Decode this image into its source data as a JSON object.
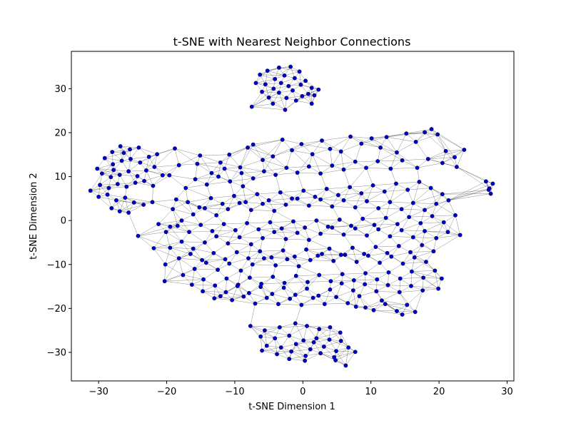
{
  "chart_data": {
    "type": "scatter",
    "title": "t-SNE with Nearest Neighbor Connections",
    "xlabel": "t-SNE Dimension 1",
    "ylabel": "t-SNE Dimension 2",
    "xlim": [
      -34,
      31
    ],
    "ylim": [
      -36.5,
      38.5
    ],
    "xticks": [
      -30,
      -20,
      -10,
      0,
      10,
      20,
      30
    ],
    "yticks": [
      -30,
      -20,
      -10,
      0,
      10,
      20,
      30
    ],
    "grid": false,
    "legend": "none",
    "point_color": "#0000cc",
    "point_edge_color": "#000066",
    "edge_color": "#000000",
    "neighbors_per_point": 6,
    "points": [
      [
        -3.5,
        34.8
      ],
      [
        -5.2,
        34.1
      ],
      [
        -1.8,
        35.0
      ],
      [
        -0.5,
        33.9
      ],
      [
        -6.3,
        33.2
      ],
      [
        -2.7,
        33.0
      ],
      [
        -4.1,
        32.2
      ],
      [
        -1.2,
        32.4
      ],
      [
        0.4,
        31.8
      ],
      [
        -3.2,
        31.3
      ],
      [
        -5.5,
        31.0
      ],
      [
        -6.9,
        31.3
      ],
      [
        -0.3,
        30.9
      ],
      [
        -2.1,
        30.6
      ],
      [
        -4.3,
        30.0
      ],
      [
        1.3,
        30.2
      ],
      [
        2.3,
        29.8
      ],
      [
        -1.5,
        29.6
      ],
      [
        -3.5,
        29.1
      ],
      [
        0.8,
        28.8
      ],
      [
        -6.0,
        29.3
      ],
      [
        -5.0,
        28.0
      ],
      [
        -2.4,
        27.9
      ],
      [
        -0.1,
        28.3
      ],
      [
        -7.5,
        25.9
      ],
      [
        -2.6,
        25.2
      ],
      [
        1.3,
        26.6
      ],
      [
        1.7,
        28.5
      ],
      [
        -4.4,
        26.6
      ],
      [
        -1.0,
        27.3
      ],
      [
        -30.2,
        11.8
      ],
      [
        -29.1,
        14.2
      ],
      [
        -28.0,
        15.6
      ],
      [
        -26.8,
        16.9
      ],
      [
        -25.4,
        16.2
      ],
      [
        -24.1,
        16.6
      ],
      [
        -27.9,
        12.8
      ],
      [
        -26.6,
        13.6
      ],
      [
        -25.3,
        14.0
      ],
      [
        -23.9,
        13.2
      ],
      [
        -22.6,
        14.5
      ],
      [
        -21.4,
        15.1
      ],
      [
        -29.5,
        10.7
      ],
      [
        -28.2,
        9.9
      ],
      [
        -26.9,
        10.4
      ],
      [
        -25.6,
        11.2
      ],
      [
        -24.3,
        10.1
      ],
      [
        -23.0,
        11.4
      ],
      [
        -21.8,
        12.2
      ],
      [
        -20.6,
        10.3
      ],
      [
        -29.8,
        8.1
      ],
      [
        -28.5,
        7.4
      ],
      [
        -27.2,
        8.3
      ],
      [
        -25.9,
        7.7
      ],
      [
        -24.6,
        8.6
      ],
      [
        -23.3,
        9.0
      ],
      [
        -22.0,
        7.9
      ],
      [
        -31.2,
        6.8
      ],
      [
        -30.0,
        5.4
      ],
      [
        -28.7,
        5.9
      ],
      [
        -27.4,
        4.6
      ],
      [
        -26.1,
        5.2
      ],
      [
        -24.8,
        4.1
      ],
      [
        -23.4,
        3.6
      ],
      [
        -28.1,
        2.8
      ],
      [
        -26.9,
        2.1
      ],
      [
        -25.6,
        1.8
      ],
      [
        -22.1,
        4.2
      ],
      [
        -26.3,
        15.4
      ],
      [
        -27.8,
        11.5
      ],
      [
        -18.8,
        16.4
      ],
      [
        -24.2,
        -3.5
      ],
      [
        -7.7,
        -24.0
      ],
      [
        -5.6,
        -25.0
      ],
      [
        -3.4,
        -24.3
      ],
      [
        -1.1,
        -23.4
      ],
      [
        0.6,
        -24.0
      ],
      [
        2.4,
        -24.7
      ],
      [
        4.0,
        -24.3
      ],
      [
        5.5,
        -25.5
      ],
      [
        -6.2,
        -26.4
      ],
      [
        -4.1,
        -26.8
      ],
      [
        -2.0,
        -26.2
      ],
      [
        0.1,
        -27.3
      ],
      [
        2.0,
        -26.8
      ],
      [
        3.9,
        -27.1
      ],
      [
        5.6,
        -27.4
      ],
      [
        -5.3,
        -28.5
      ],
      [
        -3.2,
        -28.9
      ],
      [
        -1.0,
        -28.1
      ],
      [
        1.1,
        -29.3
      ],
      [
        3.1,
        -28.7
      ],
      [
        4.9,
        -29.7
      ],
      [
        6.7,
        -28.9
      ],
      [
        -6.0,
        -29.6
      ],
      [
        -3.8,
        -30.4
      ],
      [
        -1.7,
        -29.8
      ],
      [
        0.4,
        -30.8
      ],
      [
        2.6,
        -30.2
      ],
      [
        4.6,
        -31.1
      ],
      [
        7.7,
        -29.9
      ],
      [
        -2.0,
        -31.5
      ],
      [
        0.3,
        -31.9
      ],
      [
        6.3,
        -33.0
      ],
      [
        4.8,
        -31.8
      ],
      [
        1.6,
        -27.7
      ],
      [
        26.9,
        8.9
      ],
      [
        27.4,
        7.3
      ],
      [
        27.9,
        8.4
      ],
      [
        27.6,
        6.1
      ],
      [
        27.3,
        7.0
      ],
      [
        -19.6,
        10.3
      ],
      [
        -18.2,
        12.6
      ],
      [
        -15.1,
        14.8
      ],
      [
        -13.4,
        10.8
      ],
      [
        -12.1,
        13.2
      ],
      [
        -10.8,
        15.0
      ],
      [
        -9.2,
        12.1
      ],
      [
        -8.1,
        16.6
      ],
      [
        -7.3,
        17.3
      ],
      [
        -5.9,
        13.8
      ],
      [
        -4.4,
        14.6
      ],
      [
        -3.0,
        18.4
      ],
      [
        -1.6,
        16.0
      ],
      [
        -0.2,
        17.4
      ],
      [
        1.4,
        15.1
      ],
      [
        2.8,
        18.2
      ],
      [
        4.0,
        16.3
      ],
      [
        5.6,
        15.7
      ],
      [
        7.0,
        19.1
      ],
      [
        8.6,
        17.5
      ],
      [
        10.1,
        18.7
      ],
      [
        11.4,
        16.6
      ],
      [
        12.3,
        19.0
      ],
      [
        13.8,
        15.5
      ],
      [
        15.2,
        19.8
      ],
      [
        16.6,
        17.9
      ],
      [
        17.9,
        20.1
      ],
      [
        18.9,
        20.8
      ],
      [
        19.8,
        19.6
      ],
      [
        21.0,
        15.8
      ],
      [
        22.3,
        14.4
      ],
      [
        23.7,
        16.1
      ],
      [
        22.6,
        12.2
      ],
      [
        20.5,
        13.1
      ],
      [
        18.4,
        14.0
      ],
      [
        16.8,
        12.0
      ],
      [
        14.6,
        13.7
      ],
      [
        12.9,
        11.8
      ],
      [
        11.0,
        13.5
      ],
      [
        9.3,
        12.0
      ],
      [
        7.7,
        13.4
      ],
      [
        6.0,
        11.6
      ],
      [
        4.3,
        12.5
      ],
      [
        2.6,
        10.7
      ],
      [
        0.9,
        12.3
      ],
      [
        -0.8,
        10.9
      ],
      [
        -2.4,
        12.0
      ],
      [
        -4.0,
        10.4
      ],
      [
        -5.7,
        11.2
      ],
      [
        -7.3,
        9.6
      ],
      [
        -9.0,
        10.8
      ],
      [
        -10.7,
        8.9
      ],
      [
        -12.4,
        10.0
      ],
      [
        -14.1,
        8.2
      ],
      [
        -15.8,
        9.4
      ],
      [
        -17.2,
        7.4
      ],
      [
        -18.6,
        4.8
      ],
      [
        -16.9,
        4.2
      ],
      [
        -15.2,
        3.0
      ],
      [
        -13.5,
        5.1
      ],
      [
        -11.8,
        3.8
      ],
      [
        -10.1,
        5.6
      ],
      [
        -8.4,
        4.2
      ],
      [
        -6.7,
        6.0
      ],
      [
        -5.0,
        4.6
      ],
      [
        -3.3,
        6.4
      ],
      [
        -1.6,
        5.0
      ],
      [
        0.1,
        6.8
      ],
      [
        1.8,
        5.4
      ],
      [
        3.5,
        7.2
      ],
      [
        5.2,
        5.8
      ],
      [
        6.9,
        7.6
      ],
      [
        8.6,
        6.2
      ],
      [
        10.3,
        8.0
      ],
      [
        12.0,
        6.6
      ],
      [
        13.7,
        8.4
      ],
      [
        15.4,
        7.0
      ],
      [
        17.1,
        8.8
      ],
      [
        18.8,
        7.4
      ],
      [
        20.5,
        6.0
      ],
      [
        21.4,
        4.6
      ],
      [
        19.6,
        3.8
      ],
      [
        17.9,
        2.4
      ],
      [
        16.2,
        4.0
      ],
      [
        14.5,
        2.6
      ],
      [
        12.8,
        4.2
      ],
      [
        11.1,
        2.8
      ],
      [
        9.4,
        4.4
      ],
      [
        7.7,
        3.0
      ],
      [
        6.0,
        4.6
      ],
      [
        4.3,
        3.2
      ],
      [
        2.6,
        4.8
      ],
      [
        0.9,
        3.4
      ],
      [
        -0.8,
        5.0
      ],
      [
        -2.5,
        3.6
      ],
      [
        -4.2,
        2.2
      ],
      [
        -5.9,
        3.8
      ],
      [
        -7.6,
        2.4
      ],
      [
        -9.3,
        4.0
      ],
      [
        -11.0,
        2.6
      ],
      [
        -12.7,
        1.2
      ],
      [
        -14.4,
        2.8
      ],
      [
        -16.1,
        1.4
      ],
      [
        -17.8,
        0.0
      ],
      [
        -19.5,
        -1.4
      ],
      [
        -21.2,
        -0.8
      ],
      [
        -20.1,
        -2.6
      ],
      [
        -18.4,
        -1.2
      ],
      [
        -16.7,
        -2.6
      ],
      [
        -15.0,
        -1.0
      ],
      [
        -13.3,
        -2.4
      ],
      [
        -11.6,
        -0.8
      ],
      [
        -9.9,
        -2.2
      ],
      [
        -8.2,
        -0.6
      ],
      [
        -6.5,
        -2.0
      ],
      [
        -4.8,
        -0.4
      ],
      [
        -3.1,
        -1.8
      ],
      [
        -1.4,
        -0.2
      ],
      [
        0.3,
        -1.6
      ],
      [
        2.0,
        0.0
      ],
      [
        3.7,
        -1.4
      ],
      [
        5.4,
        0.2
      ],
      [
        7.1,
        -1.2
      ],
      [
        8.8,
        0.4
      ],
      [
        10.5,
        -1.0
      ],
      [
        12.2,
        0.6
      ],
      [
        13.9,
        -0.8
      ],
      [
        15.6,
        0.8
      ],
      [
        17.3,
        -0.6
      ],
      [
        19.0,
        1.0
      ],
      [
        20.7,
        -0.4
      ],
      [
        22.4,
        1.2
      ],
      [
        23.1,
        -3.3
      ],
      [
        21.3,
        -2.6
      ],
      [
        19.6,
        -4.0
      ],
      [
        17.9,
        -2.4
      ],
      [
        16.2,
        -3.8
      ],
      [
        14.5,
        -2.2
      ],
      [
        12.8,
        -3.6
      ],
      [
        11.1,
        -2.0
      ],
      [
        9.4,
        -3.4
      ],
      [
        7.7,
        -1.8
      ],
      [
        6.0,
        -3.2
      ],
      [
        4.3,
        -1.6
      ],
      [
        2.6,
        -3.0
      ],
      [
        0.9,
        -4.4
      ],
      [
        -0.8,
        -2.8
      ],
      [
        -2.5,
        -4.2
      ],
      [
        -4.2,
        -2.6
      ],
      [
        -5.9,
        -4.0
      ],
      [
        -7.6,
        -5.4
      ],
      [
        -9.3,
        -3.8
      ],
      [
        -11.0,
        -5.2
      ],
      [
        -12.7,
        -3.6
      ],
      [
        -14.4,
        -5.0
      ],
      [
        -16.1,
        -6.4
      ],
      [
        -17.8,
        -4.8
      ],
      [
        -19.5,
        -6.2
      ],
      [
        -18.2,
        -8.6
      ],
      [
        -16.5,
        -7.6
      ],
      [
        -14.8,
        -9.0
      ],
      [
        -13.1,
        -7.4
      ],
      [
        -11.4,
        -8.8
      ],
      [
        -9.7,
        -7.2
      ],
      [
        -8.0,
        -8.6
      ],
      [
        -6.3,
        -7.0
      ],
      [
        -4.6,
        -8.4
      ],
      [
        -2.9,
        -6.8
      ],
      [
        -1.2,
        -8.2
      ],
      [
        0.5,
        -6.6
      ],
      [
        2.2,
        -8.0
      ],
      [
        3.9,
        -6.4
      ],
      [
        5.6,
        -7.8
      ],
      [
        7.3,
        -6.2
      ],
      [
        9.0,
        -7.6
      ],
      [
        10.7,
        -6.0
      ],
      [
        12.4,
        -7.4
      ],
      [
        14.1,
        -5.8
      ],
      [
        15.8,
        -7.2
      ],
      [
        17.5,
        -5.6
      ],
      [
        19.2,
        -7.0
      ],
      [
        18.1,
        -9.4
      ],
      [
        16.4,
        -8.4
      ],
      [
        14.7,
        -9.8
      ],
      [
        13.0,
        -8.2
      ],
      [
        11.3,
        -9.6
      ],
      [
        9.6,
        -8.0
      ],
      [
        7.9,
        -9.4
      ],
      [
        6.2,
        -7.8
      ],
      [
        4.5,
        -9.2
      ],
      [
        2.8,
        -7.6
      ],
      [
        1.1,
        -9.0
      ],
      [
        -0.6,
        -10.4
      ],
      [
        -2.3,
        -8.8
      ],
      [
        -4.0,
        -10.2
      ],
      [
        -5.7,
        -8.6
      ],
      [
        -7.4,
        -10.0
      ],
      [
        -9.1,
        -11.4
      ],
      [
        -10.8,
        -9.8
      ],
      [
        -12.5,
        -11.2
      ],
      [
        -14.2,
        -9.6
      ],
      [
        -15.9,
        -11.0
      ],
      [
        -17.6,
        -12.4
      ],
      [
        -16.3,
        -14.6
      ],
      [
        -14.6,
        -13.4
      ],
      [
        -12.9,
        -14.8
      ],
      [
        -11.2,
        -13.2
      ],
      [
        -9.5,
        -14.6
      ],
      [
        -7.8,
        -13.0
      ],
      [
        -6.1,
        -14.4
      ],
      [
        -4.4,
        -12.8
      ],
      [
        -2.7,
        -14.2
      ],
      [
        -1.0,
        -12.6
      ],
      [
        0.7,
        -14.0
      ],
      [
        2.4,
        -12.4
      ],
      [
        4.1,
        -13.8
      ],
      [
        5.8,
        -12.2
      ],
      [
        7.5,
        -13.6
      ],
      [
        9.2,
        -12.0
      ],
      [
        10.9,
        -13.4
      ],
      [
        12.6,
        -11.8
      ],
      [
        14.3,
        -13.2
      ],
      [
        16.0,
        -11.6
      ],
      [
        17.7,
        -13.0
      ],
      [
        19.4,
        -11.4
      ],
      [
        20.4,
        -13.2
      ],
      [
        19.9,
        -15.5
      ],
      [
        17.6,
        -15.9
      ],
      [
        15.9,
        -14.9
      ],
      [
        14.2,
        -16.3
      ],
      [
        12.5,
        -14.7
      ],
      [
        10.8,
        -16.1
      ],
      [
        9.1,
        -14.5
      ],
      [
        7.4,
        -15.9
      ],
      [
        5.7,
        -14.3
      ],
      [
        4.0,
        -15.7
      ],
      [
        2.3,
        -17.1
      ],
      [
        0.6,
        -15.5
      ],
      [
        -1.1,
        -16.9
      ],
      [
        -2.8,
        -15.3
      ],
      [
        -4.5,
        -16.7
      ],
      [
        -6.2,
        -15.1
      ],
      [
        -7.9,
        -16.5
      ],
      [
        -9.6,
        -14.9
      ],
      [
        -11.3,
        -16.3
      ],
      [
        -13.0,
        -17.7
      ],
      [
        -14.7,
        -16.1
      ],
      [
        -12.1,
        -17.2
      ],
      [
        -10.4,
        -18.1
      ],
      [
        -8.7,
        -17.3
      ],
      [
        -7.0,
        -18.9
      ],
      [
        -5.3,
        -17.6
      ],
      [
        -3.6,
        -19.0
      ],
      [
        -1.9,
        -17.8
      ],
      [
        -0.2,
        -19.2
      ],
      [
        1.5,
        -17.6
      ],
      [
        3.2,
        -19.0
      ],
      [
        4.9,
        -17.4
      ],
      [
        6.6,
        -18.8
      ],
      [
        8.3,
        -17.2
      ],
      [
        9.2,
        -19.8
      ],
      [
        10.4,
        -20.4
      ],
      [
        12.1,
        -19.0
      ],
      [
        13.8,
        -20.6
      ],
      [
        15.3,
        -19.2
      ],
      [
        16.5,
        -20.8
      ],
      [
        14.6,
        -21.4
      ],
      [
        11.6,
        -18.2
      ],
      [
        7.8,
        -19.6
      ],
      [
        -20.3,
        -13.8
      ],
      [
        -20.2,
        -10.0
      ],
      [
        -21.9,
        -6.3
      ],
      [
        -15.5,
        12.9
      ],
      [
        -11.5,
        11.8
      ],
      [
        -19.1,
        2.6
      ],
      [
        -8.8,
        7.8
      ]
    ]
  }
}
